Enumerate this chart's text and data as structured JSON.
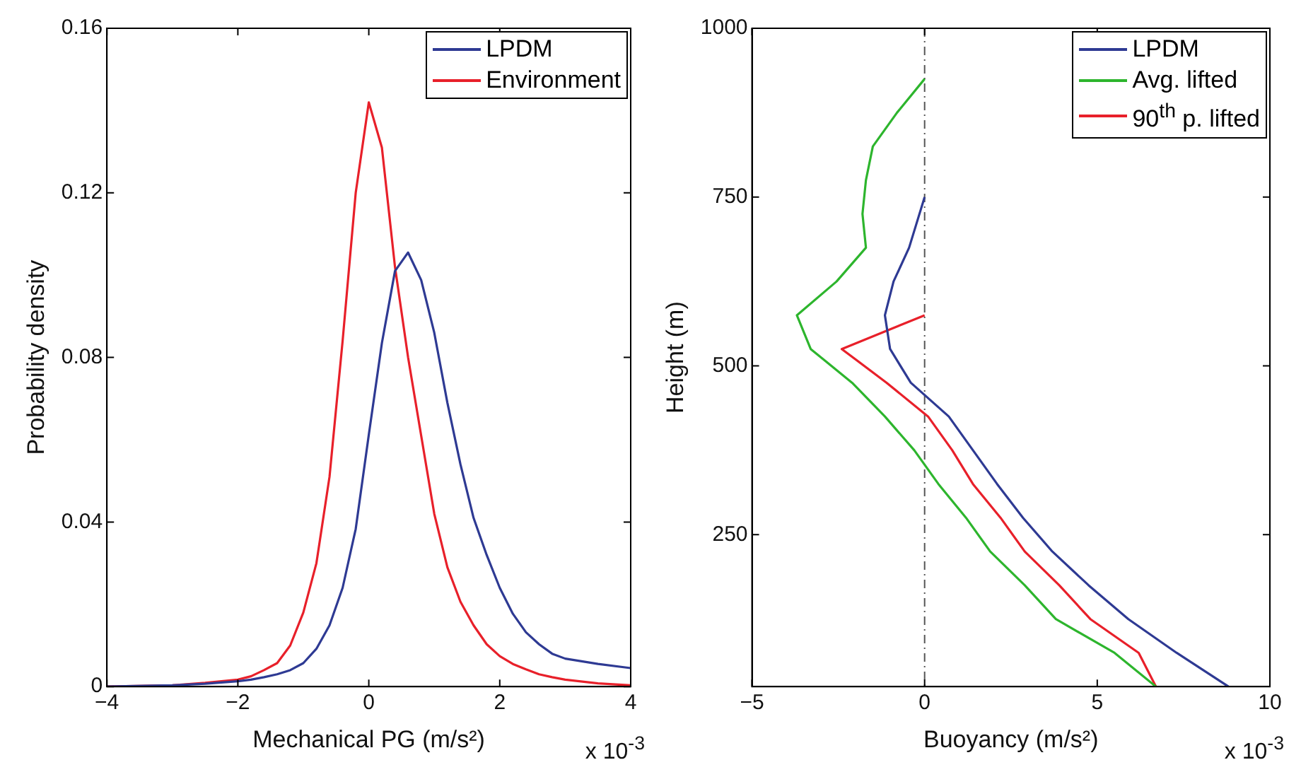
{
  "chart_data": [
    {
      "type": "line",
      "xlabel": "Mechanical PG (m/s²)",
      "ylabel": "Probability density",
      "annotations": [
        "x 10$^{-3}$"
      ],
      "x": [
        -4,
        -3,
        -2.5,
        -2,
        -1.8,
        -1.6,
        -1.4,
        -1.2,
        -1,
        -0.8,
        -0.6,
        -0.4,
        -0.2,
        0,
        0.2,
        0.4,
        0.6,
        0.8,
        1,
        1.2,
        1.4,
        1.6,
        1.8,
        2,
        2.2,
        2.4,
        2.6,
        2.8,
        3,
        3.5,
        4
      ],
      "series": [
        {
          "name": "LPDM",
          "color": "#2e3a93",
          "values": [
            0,
            0.0003,
            0.0007,
            0.0013,
            0.0017,
            0.0023,
            0.003,
            0.004,
            0.0057,
            0.0092,
            0.0149,
            0.024,
            0.0383,
            0.0612,
            0.0835,
            0.101,
            0.1055,
            0.0988,
            0.086,
            0.069,
            0.054,
            0.041,
            0.032,
            0.024,
            0.0177,
            0.0132,
            0.0103,
            0.008,
            0.0068,
            0.0055,
            0.0045
          ]
        },
        {
          "name": "Environment",
          "color": "#e8202a",
          "values": [
            0,
            0.0003,
            0.0009,
            0.0017,
            0.0025,
            0.004,
            0.0057,
            0.01,
            0.018,
            0.03,
            0.051,
            0.084,
            0.12,
            0.142,
            0.131,
            0.102,
            0.08,
            0.061,
            0.042,
            0.029,
            0.0206,
            0.0149,
            0.0103,
            0.0074,
            0.0055,
            0.0042,
            0.003,
            0.0023,
            0.0017,
            0.0008,
            0.0003
          ]
        }
      ],
      "xlim": [
        -4,
        4
      ],
      "xticks": [
        -4,
        -2,
        0,
        2,
        4
      ],
      "ylim": [
        0,
        0.16
      ],
      "yticks": [
        0,
        0.04,
        0.08,
        0.12,
        0.16
      ],
      "grid": false,
      "legend": "top right",
      "marker": "none",
      "line_style": "solid"
    },
    {
      "type": "line",
      "xlabel": "Buoyancy (m/s²)",
      "ylabel": "Height (m)",
      "annotations": [
        "x 10$^{-3}$"
      ],
      "series": [
        {
          "name": "LPDM",
          "color": "#2e3a93",
          "x": [
            8.8,
            7.3,
            5.9,
            4.75,
            3.7,
            2.85,
            2.1,
            1.4,
            0.7,
            -0.4,
            -1,
            -1.15,
            -0.9,
            -0.45,
            -0.15,
            0
          ],
          "values": [
            25,
            75,
            125,
            175,
            225,
            275,
            325,
            375,
            425,
            475,
            525,
            575,
            625,
            675,
            725,
            750
          ]
        },
        {
          "name": "Avg. lifted",
          "color": "#2db52d",
          "x": [
            6.7,
            5.5,
            3.8,
            2.9,
            1.9,
            1.2,
            0.4,
            -0.3,
            -1.15,
            -2.1,
            -3.3,
            -3.7,
            -2.55,
            -1.7,
            -1.8,
            -1.7,
            -1.5,
            -0.8,
            0
          ],
          "values": [
            25,
            75,
            125,
            175,
            225,
            275,
            325,
            375,
            425,
            475,
            525,
            575,
            625,
            675,
            725,
            775,
            825,
            875,
            925
          ]
        },
        {
          "name": "90$^{th}$ p. lifted",
          "color": "#e8202a",
          "x": [
            6.7,
            6.2,
            4.8,
            3.9,
            2.9,
            2.2,
            1.4,
            0.8,
            0.1,
            -1.1,
            -2.4,
            0
          ],
          "values": [
            25,
            75,
            125,
            175,
            225,
            275,
            325,
            375,
            425,
            475,
            525,
            575
          ]
        }
      ],
      "ref_lines": [
        {
          "axis": "x",
          "value": 0,
          "color": "#555555",
          "line_style": "dashed"
        }
      ],
      "xlim": [
        -5,
        10
      ],
      "xticks": [
        -5,
        0,
        5,
        10
      ],
      "ylim": [
        25,
        1000
      ],
      "yticks": [
        250,
        500,
        750,
        1000
      ],
      "grid": false,
      "legend": "top right",
      "marker": "none",
      "line_style": "solid"
    }
  ]
}
